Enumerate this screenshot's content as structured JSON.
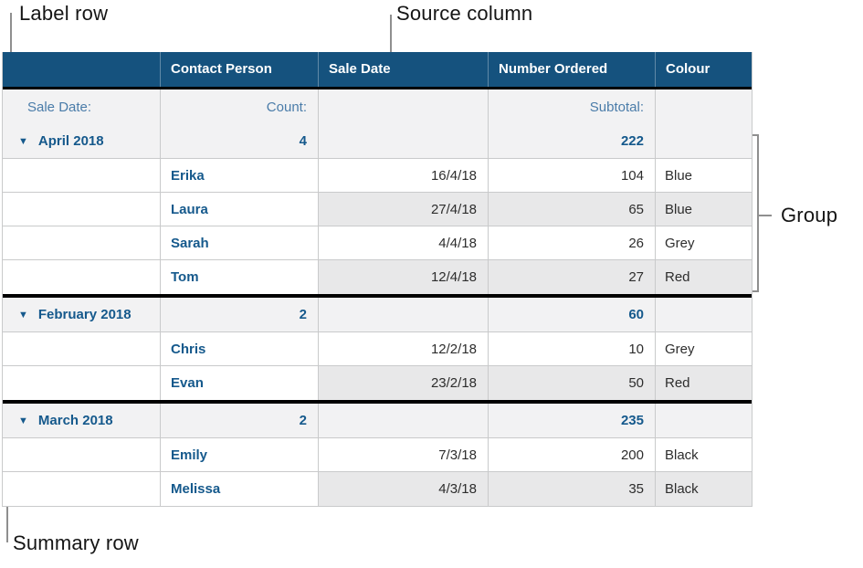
{
  "annotations": {
    "label_row": "Label row",
    "source_column": "Source column",
    "group": "Group",
    "summary_row": "Summary row"
  },
  "table": {
    "disclosure_icon": "▼",
    "header": [
      "",
      "Contact Person",
      "Sale Date",
      "Number Ordered",
      "Colour"
    ],
    "label_row": {
      "category_label": "Sale Date:",
      "count_label": "Count:",
      "subtotal_label": "Subtotal:"
    },
    "groups": [
      {
        "name": "April 2018",
        "count": "4",
        "subtotal": "222",
        "rows": [
          {
            "name": "Erika",
            "date": "16/4/18",
            "number": "104",
            "colour": "Blue"
          },
          {
            "name": "Laura",
            "date": "27/4/18",
            "number": "65",
            "colour": "Blue"
          },
          {
            "name": "Sarah",
            "date": "4/4/18",
            "number": "26",
            "colour": "Grey"
          },
          {
            "name": "Tom",
            "date": "12/4/18",
            "number": "27",
            "colour": "Red"
          }
        ]
      },
      {
        "name": "February 2018",
        "count": "2",
        "subtotal": "60",
        "rows": [
          {
            "name": "Chris",
            "date": "12/2/18",
            "number": "10",
            "colour": "Grey"
          },
          {
            "name": "Evan",
            "date": "23/2/18",
            "number": "50",
            "colour": "Red"
          }
        ]
      },
      {
        "name": "March 2018",
        "count": "2",
        "subtotal": "235",
        "rows": [
          {
            "name": "Emily",
            "date": "7/3/18",
            "number": "200",
            "colour": "Black"
          },
          {
            "name": "Melissa",
            "date": "4/3/18",
            "number": "35",
            "colour": "Black"
          }
        ]
      }
    ]
  },
  "colors": {
    "header_bg": "#15527e",
    "accent_text": "#15598c",
    "label_text": "#4a7ca9",
    "row_stripe": "#e8e8e9",
    "summary_bg": "#f2f2f3",
    "grid_line": "#c9cacb",
    "group_divider": "#000000",
    "callout_line": "#8f8f8f"
  }
}
